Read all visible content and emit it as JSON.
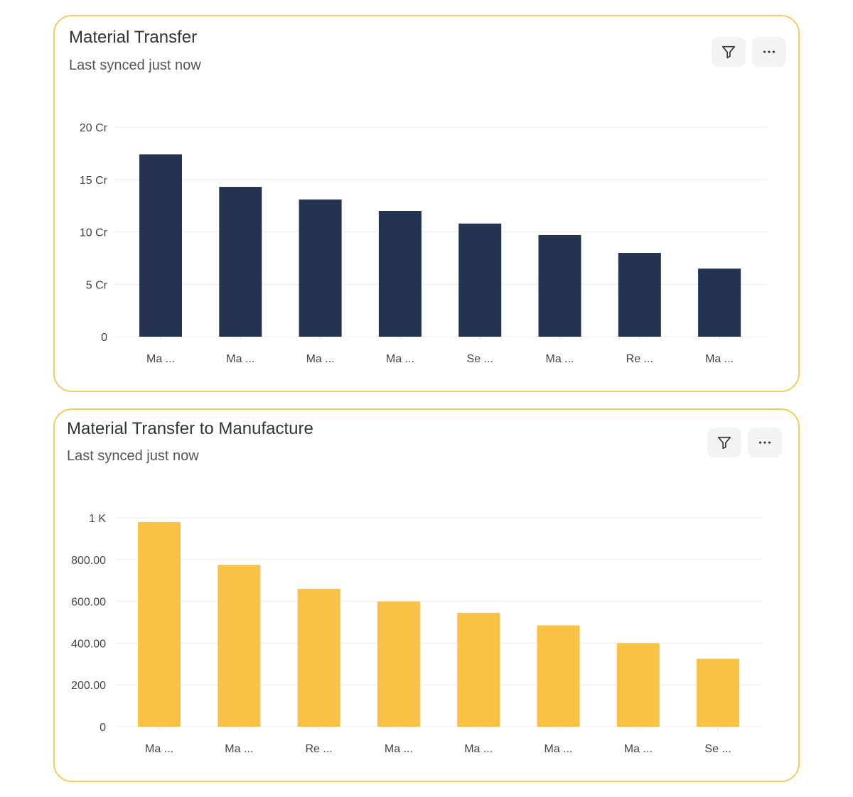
{
  "cards": [
    {
      "title": "Material Transfer",
      "subtitle": "Last synced just now",
      "filter_icon": "filter-icon",
      "more_icon": "more-horizontal-icon"
    },
    {
      "title": "Material Transfer to Manufacture",
      "subtitle": "Last synced just now",
      "filter_icon": "filter-icon",
      "more_icon": "more-horizontal-icon"
    }
  ],
  "colors": {
    "border": "#f2cd5d",
    "series1": "#233350",
    "series2": "#f9c246",
    "button_bg": "#f3f3f3"
  },
  "chart_data": [
    {
      "type": "bar",
      "categories": [
        "Ma ...",
        "Ma ...",
        "Ma ...",
        "Ma ...",
        "Se ...",
        "Ma ...",
        "Re ...",
        "Ma ..."
      ],
      "values": [
        17.4,
        14.3,
        13.1,
        12.0,
        10.8,
        9.7,
        8.0,
        6.5
      ],
      "yticks": [
        "0",
        "5 Cr",
        "10 Cr",
        "15 Cr",
        "20 Cr"
      ],
      "ytick_values": [
        0,
        5,
        10,
        15,
        20
      ],
      "ylim": [
        0,
        20
      ],
      "grid": true
    },
    {
      "type": "bar",
      "categories": [
        "Ma ...",
        "Ma ...",
        "Re ...",
        "Ma ...",
        "Ma ...",
        "Ma ...",
        "Ma ...",
        "Se ..."
      ],
      "values": [
        980,
        775,
        660,
        600,
        545,
        485,
        400,
        325
      ],
      "yticks": [
        "0",
        "200.00",
        "400.00",
        "600.00",
        "800.00",
        "1 K"
      ],
      "ytick_values": [
        0,
        200,
        400,
        600,
        800,
        1000
      ],
      "ylim": [
        0,
        1000
      ],
      "grid": true
    }
  ]
}
